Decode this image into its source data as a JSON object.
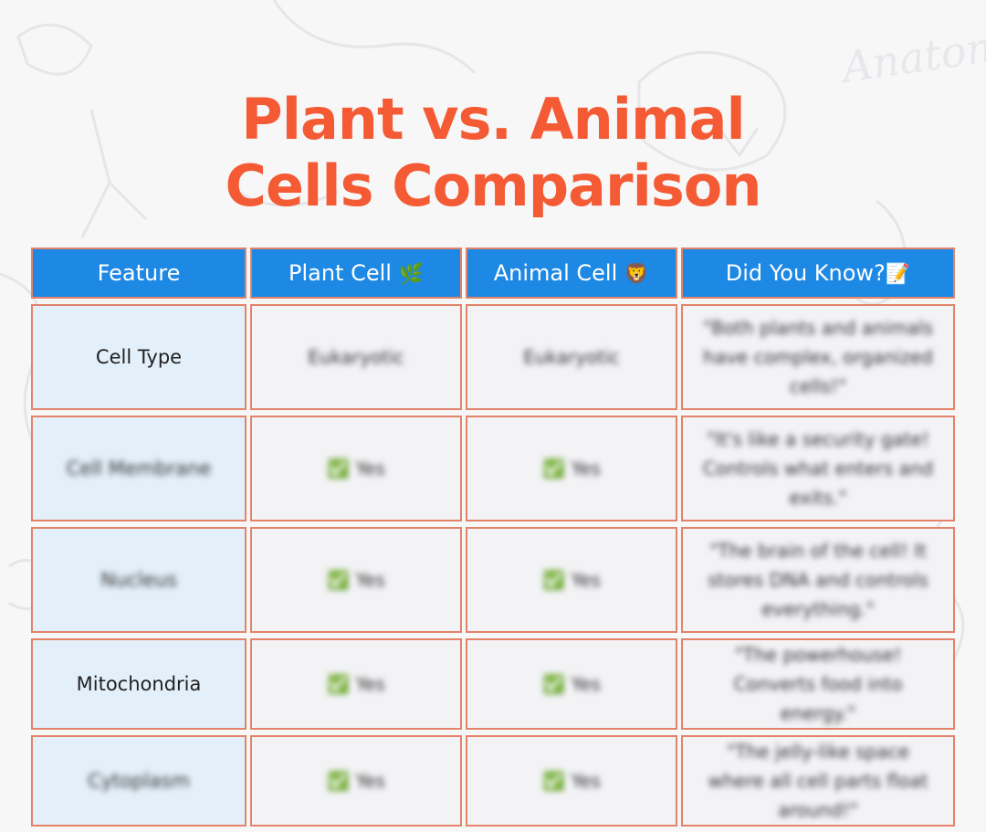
{
  "title_lines": [
    "Plant vs. Animal",
    "Cells Comparison"
  ],
  "background_watermark": "Anatomy",
  "headers": {
    "feature": "Feature",
    "plant": "Plant Cell",
    "plant_emoji": "🌿",
    "animal": "Animal Cell",
    "animal_emoji": "🦁",
    "fact": "Did You Know?",
    "fact_emoji": "📝"
  },
  "rows": [
    {
      "feature": "Cell Type",
      "plant": "Eukaryotic",
      "animal": "Eukaryotic",
      "fact": "\"Both plants and animals have complex, organized cells!\""
    },
    {
      "feature": "Cell Membrane",
      "plant": "✅ Yes",
      "animal": "✅ Yes",
      "fact": "\"It's like a security gate! Controls what enters and exits.\""
    },
    {
      "feature": "Nucleus",
      "plant": "✅ Yes",
      "animal": "✅ Yes",
      "fact": "\"The brain of the cell! It stores DNA and controls everything.\""
    },
    {
      "feature": "Mitochondria",
      "plant": "✅ Yes",
      "animal": "✅ Yes",
      "fact": "\"The powerhouse! Converts food into energy.\""
    },
    {
      "feature": "Cytoplasm",
      "plant": "✅ Yes",
      "animal": "✅ Yes",
      "fact": "\"The jelly-like space where all cell parts float around!\""
    }
  ],
  "colors": {
    "title": "#f45a33",
    "header_bg": "#1e88e5",
    "border": "#e2836a",
    "feature_bg": "#e3eff9",
    "check": "#66bb6a"
  }
}
